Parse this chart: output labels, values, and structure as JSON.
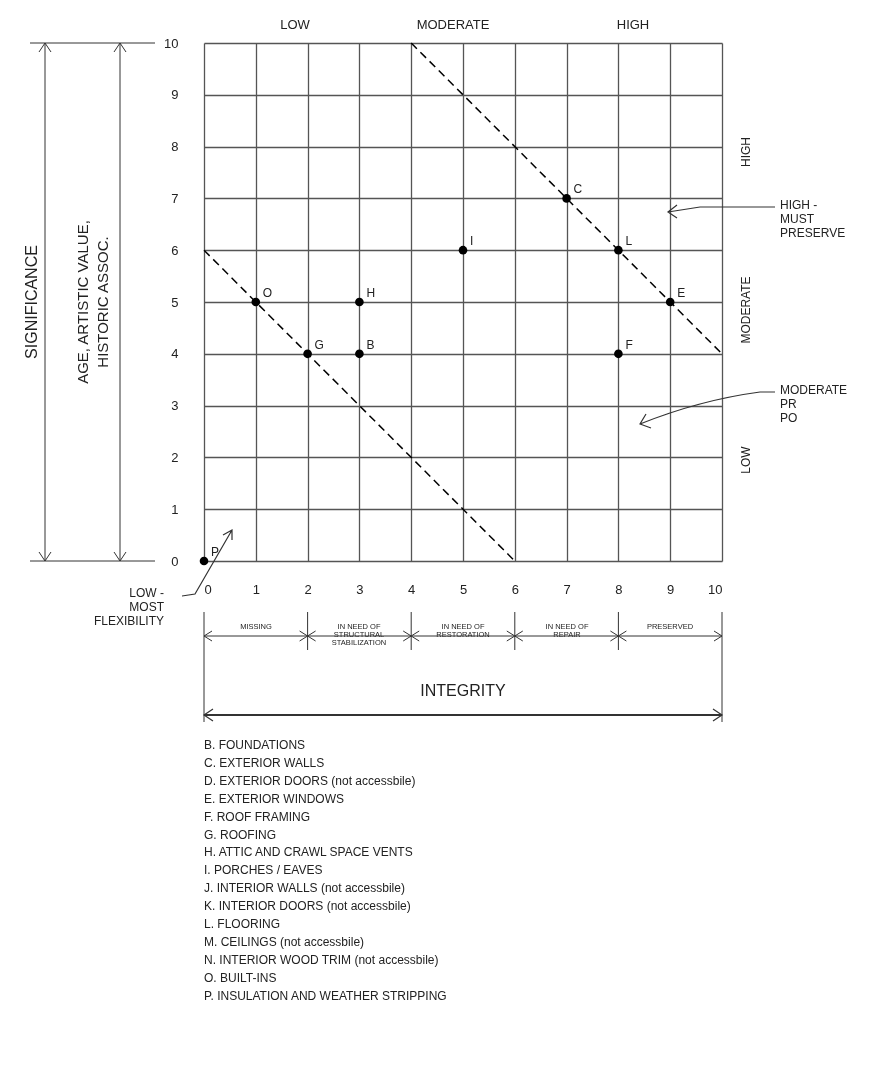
{
  "chart_data": {
    "type": "scatter",
    "xlim": [
      0,
      10
    ],
    "ylim": [
      0,
      10
    ],
    "xticks": [
      0,
      1,
      2,
      3,
      4,
      5,
      6,
      7,
      8,
      9,
      10
    ],
    "yticks": [
      0,
      1,
      2,
      3,
      4,
      5,
      6,
      7,
      8,
      9,
      10
    ],
    "grid": true,
    "series": [
      {
        "color": "#000000",
        "marker": "circle",
        "x": [
          3,
          7,
          9,
          8,
          2,
          3,
          5,
          8,
          1,
          0
        ],
        "values": [
          4,
          7,
          5,
          4,
          4,
          5,
          6,
          6,
          5,
          0
        ],
        "value_labels": [
          "B",
          "C",
          "E",
          "F",
          "G",
          "H",
          "I",
          "L",
          "O",
          "P"
        ]
      },
      {
        "type": "line",
        "color": "#000000",
        "line_style": "dashed",
        "x": [
          0,
          6
        ],
        "values": [
          6,
          0
        ]
      },
      {
        "type": "line",
        "color": "#000000",
        "line_style": "dashed",
        "x": [
          4,
          10
        ],
        "values": [
          10,
          4
        ]
      }
    ],
    "annotations": [
      "LOW",
      "MODERATE",
      "HIGH",
      "LOW",
      "MODERATE",
      "HIGH",
      "MISSING",
      "IN NEED OF\nSTRUCTURAL\nSTABILIZATION",
      "IN NEED OF\nRESTORATION",
      "IN NEED OF\nREPAIR",
      "PRESERVED",
      "HIGH -\nMUST\nPRESERVE",
      "MODERATE\nPR\nPO",
      "LOW -\nMOST\nFLEXIBILITY",
      "SIGNIFICANCE",
      "AGE, ARTISTIC VALUE,\nHISTORIC ASSOC.",
      "INTEGRITY",
      "B.   FOUNDATIONS",
      "C.   EXTERIOR WALLS",
      "D.   EXTERIOR DOORS (not accessbile)",
      "E.   EXTERIOR WINDOWS",
      "F.   ROOF FRAMING",
      "G.   ROOFING",
      "H.   ATTIC AND CRAWL SPACE VENTS",
      "I.   PORCHES / EAVES",
      "J.   INTERIOR WALLS (not accessbile)",
      "K.   INTERIOR DOORS (not accessbile)",
      "L.   FLOORING",
      "M.   CEILINGS (not accessbile)",
      "N.   INTERIOR WOOD TRIM (not accessbile)",
      "O.   BUILT-INS",
      "P.   INSULATION AND WEATHER STRIPPING"
    ]
  }
}
